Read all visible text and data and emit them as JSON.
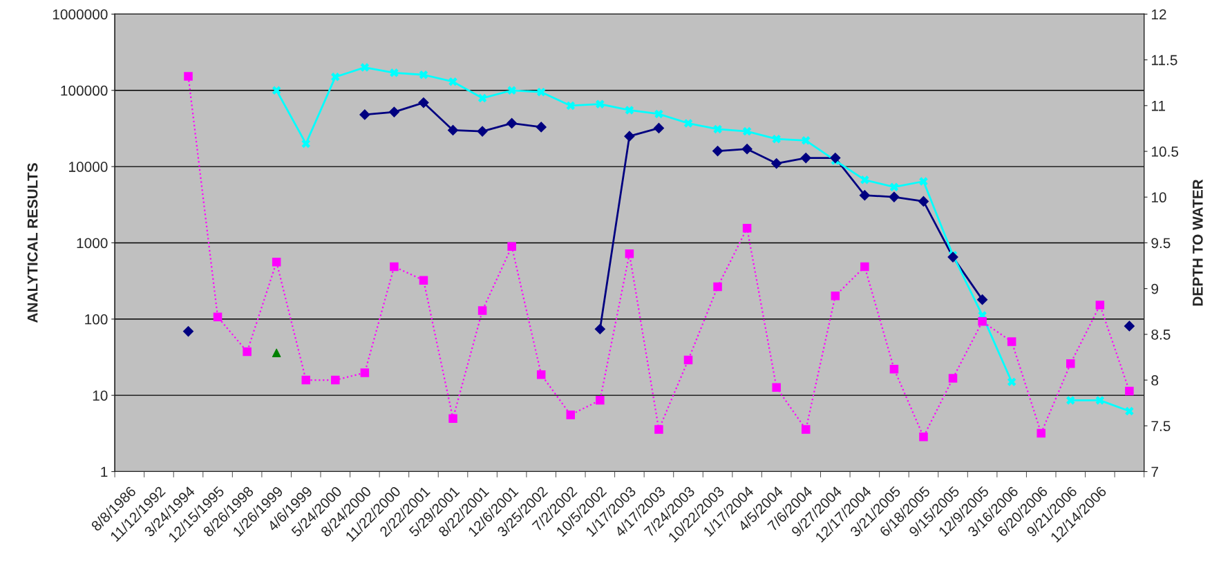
{
  "chart_data": {
    "type": "line",
    "ylabel": "ANALYTICAL RESULTS",
    "y2label": "DEPTH TO WATER",
    "categories": [
      "8/8/1986",
      "11/12/1992",
      "3/24/1994",
      "12/15/1995",
      "8/26/1998",
      "1/26/1999",
      "4/6/1999",
      "5/24/2000",
      "8/24/2000",
      "11/22/2000",
      "2/22/2001",
      "5/29/2001",
      "8/22/2001",
      "12/6/2001",
      "3/25/2002",
      "7/2/2002",
      "10/5/2002",
      "1/17/2003",
      "4/17/2003",
      "7/24/2003",
      "10/22/2003",
      "1/17/2004",
      "4/5/2004",
      "7/6/2004",
      "9/27/2004",
      "12/17/2004",
      "3/21/2005",
      "6/18/2005",
      "9/15/2005",
      "12/9/2005",
      "3/16/2006",
      "6/20/2006",
      "9/21/2006",
      "12/14/2006",
      null
    ],
    "series": [
      {
        "color": "#000080",
        "marker": "diamond",
        "line_style": "solid",
        "values": [
          null,
          null,
          69,
          null,
          null,
          null,
          null,
          null,
          48000,
          52000,
          69000,
          30000,
          29000,
          37000,
          33000,
          null,
          74,
          25000,
          32000,
          null,
          16000,
          17000,
          11000,
          13000,
          13000,
          4200,
          4000,
          3500,
          650,
          180,
          null,
          null,
          null,
          null,
          81
        ]
      },
      {
        "color": "#00ffff",
        "marker": "cross",
        "line_style": "solid",
        "values": [
          null,
          null,
          null,
          null,
          null,
          100000,
          20000,
          150000,
          200000,
          170000,
          160000,
          130000,
          79000,
          100000,
          95000,
          63000,
          66000,
          55000,
          49000,
          37000,
          31000,
          29000,
          23000,
          22000,
          12000,
          6700,
          5400,
          6400,
          690,
          112,
          15,
          null,
          8.6,
          8.6,
          6.2
        ]
      },
      {
        "type": "scatter",
        "color": "#008000",
        "marker": "triangle",
        "values": [
          null,
          null,
          null,
          null,
          null,
          36,
          null,
          null,
          null,
          null,
          null,
          null,
          null,
          null,
          null,
          null,
          null,
          null,
          null,
          null,
          null,
          null,
          null,
          null,
          null,
          null,
          null,
          null,
          null,
          null,
          null,
          null,
          null,
          null,
          null
        ]
      },
      {
        "axis": "y2",
        "color": "#ff00ff",
        "marker": "square",
        "line_style": "dotted",
        "values": [
          null,
          null,
          11.32,
          8.69,
          8.31,
          9.29,
          8.0,
          8.0,
          8.08,
          9.24,
          9.09,
          7.58,
          8.76,
          9.46,
          8.06,
          7.62,
          7.78,
          9.38,
          7.46,
          8.22,
          9.02,
          9.66,
          7.92,
          7.46,
          8.92,
          9.24,
          8.12,
          7.38,
          8.02,
          8.64,
          8.42,
          7.42,
          8.18,
          8.82,
          7.88
        ]
      }
    ],
    "log": "y",
    "ylim": [
      1,
      1000000
    ],
    "yticks": [
      1,
      10,
      100,
      1000,
      10000,
      100000,
      1000000
    ],
    "y2lim": [
      7,
      12
    ],
    "y2ticks": [
      7,
      7.5,
      8,
      8.5,
      9,
      9.5,
      10,
      10.5,
      11,
      11.5,
      12
    ],
    "grid": "y",
    "legend": false
  }
}
